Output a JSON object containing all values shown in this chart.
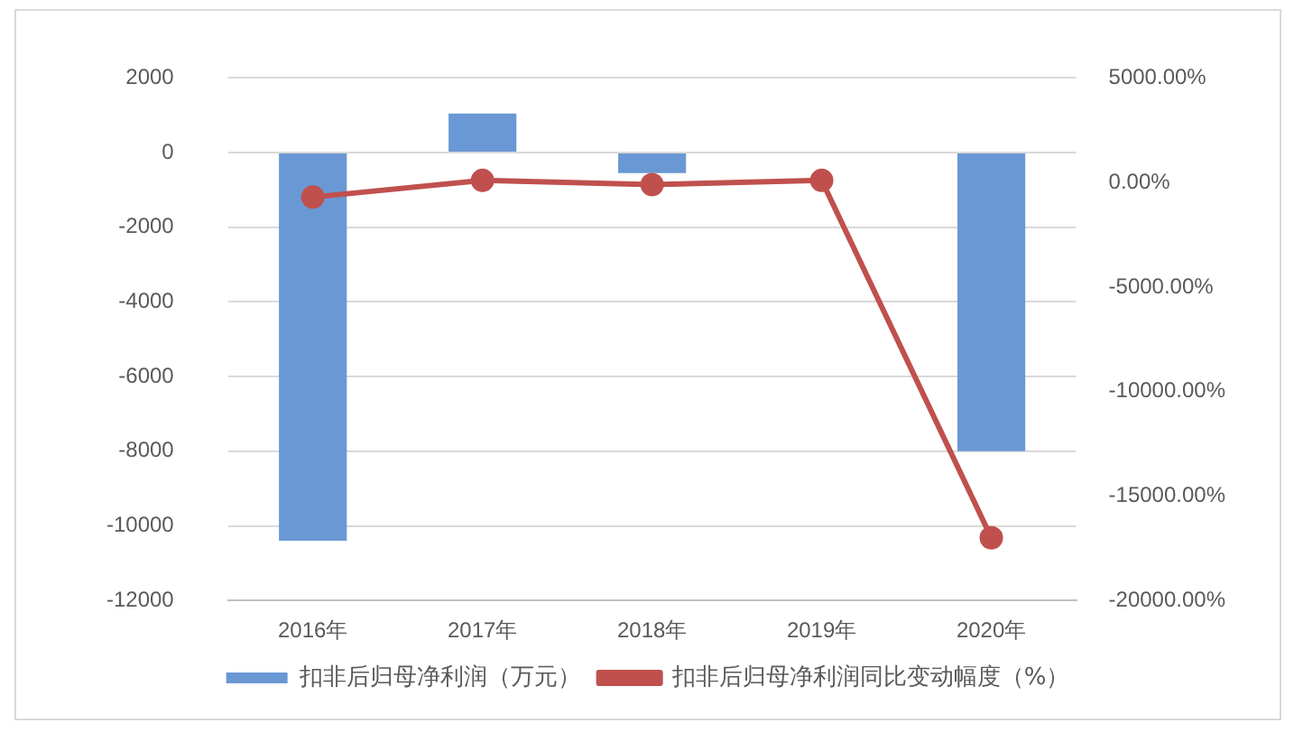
{
  "chart_data": {
    "type": "bar",
    "categories": [
      "2016年",
      "2017年",
      "2018年",
      "2019年",
      "2020年"
    ],
    "series": [
      {
        "name": "扣非后归母净利润（万元）",
        "color": "#6a98d4",
        "values": [
          -10400,
          1050,
          -550,
          0,
          -8000
        ]
      },
      {
        "name": "扣非后归母净利润同比变动幅度（%）",
        "type": "line",
        "axis": "y2",
        "color": "#c0504d",
        "values": [
          -700,
          100,
          -100,
          100,
          -17000
        ]
      }
    ],
    "ylim": [
      -12000,
      2000
    ],
    "yticks": [
      -12000,
      -10000,
      -8000,
      -6000,
      -4000,
      -2000,
      0,
      2000
    ],
    "y2lim": [
      -20000,
      5000
    ],
    "y2ticks": [
      {
        "value": -20000,
        "label": "-20000.00%"
      },
      {
        "value": -15000,
        "label": "-15000.00%"
      },
      {
        "value": -10000,
        "label": "-10000.00%"
      },
      {
        "value": -5000,
        "label": "-5000.00%"
      },
      {
        "value": 0,
        "label": "0.00%"
      },
      {
        "value": 5000,
        "label": "5000.00%"
      }
    ],
    "grid": "y",
    "legend": "bottom",
    "marker": "circle"
  }
}
